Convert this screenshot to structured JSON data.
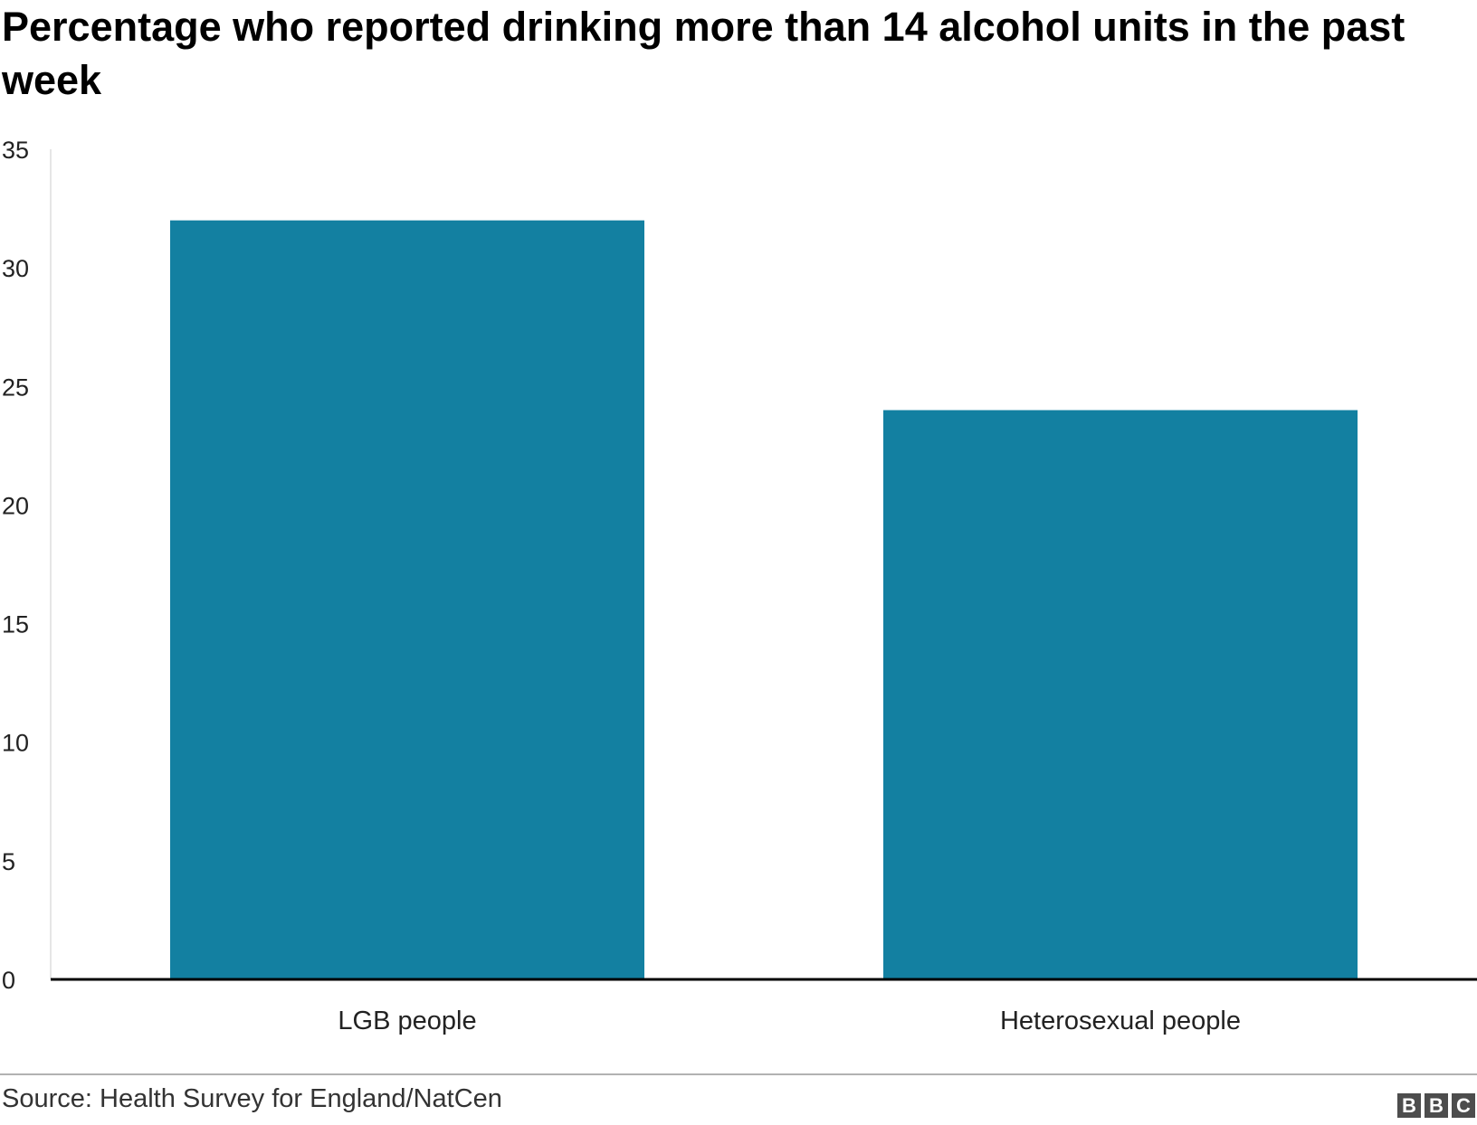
{
  "title": "Percentage who reported drinking more than 14 alcohol units in the past week",
  "source": "Source: Health Survey for England/NatCen",
  "logo": [
    "B",
    "B",
    "C"
  ],
  "colors": {
    "bar": "#1380a1",
    "axis": "#000000",
    "text": "#222222",
    "divider": "#999999"
  },
  "chart_data": {
    "type": "bar",
    "categories": [
      "LGB people",
      "Heterosexual people"
    ],
    "values": [
      32,
      24
    ],
    "title": "Percentage who reported drinking more than 14 alcohol units in the past week",
    "xlabel": "",
    "ylabel": "",
    "ylim": [
      0,
      35
    ],
    "yticks": [
      0,
      5,
      10,
      15,
      20,
      25,
      30,
      35
    ],
    "grid": false,
    "legend": "none"
  }
}
